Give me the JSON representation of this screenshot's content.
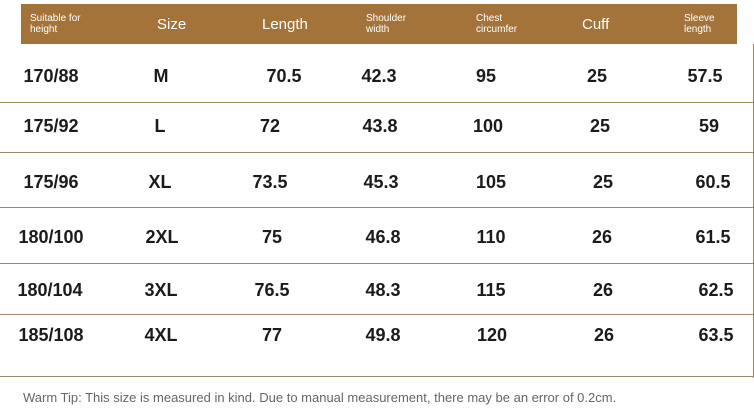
{
  "header": {
    "height_label": "Suitable for height",
    "size": "Size",
    "length": "Length",
    "shoulder": "Shoulder width",
    "chest": "Chest circumfer",
    "cuff": "Cuff",
    "sleeve": "Sleeve length"
  },
  "rows": [
    {
      "height": "170/88",
      "size": "M",
      "length": "70.5",
      "shoulder": "42.3",
      "chest": "95",
      "cuff": "25",
      "sleeve": "57.5"
    },
    {
      "height": "175/92",
      "size": "L",
      "length": "72",
      "shoulder": "43.8",
      "chest": "100",
      "cuff": "25",
      "sleeve": "59"
    },
    {
      "height": "175/96",
      "size": "XL",
      "length": "73.5",
      "shoulder": "45.3",
      "chest": "105",
      "cuff": "25",
      "sleeve": "60.5"
    },
    {
      "height": "180/100",
      "size": "2XL",
      "length": "75",
      "shoulder": "46.8",
      "chest": "110",
      "cuff": "26",
      "sleeve": "61.5"
    },
    {
      "height": "180/104",
      "size": "3XL",
      "length": "76.5",
      "shoulder": "48.3",
      "chest": "115",
      "cuff": "26",
      "sleeve": "62.5"
    },
    {
      "height": "185/108",
      "size": "4XL",
      "length": "77",
      "shoulder": "49.8",
      "chest": "120",
      "cuff": "26",
      "sleeve": "63.5"
    }
  ],
  "tip": "Warm Tip: This size is measured in kind. Due to manual measurement, there may be an error of 0.2cm.",
  "colors": {
    "header_bg": "#a37339",
    "divider": "#a08660"
  }
}
